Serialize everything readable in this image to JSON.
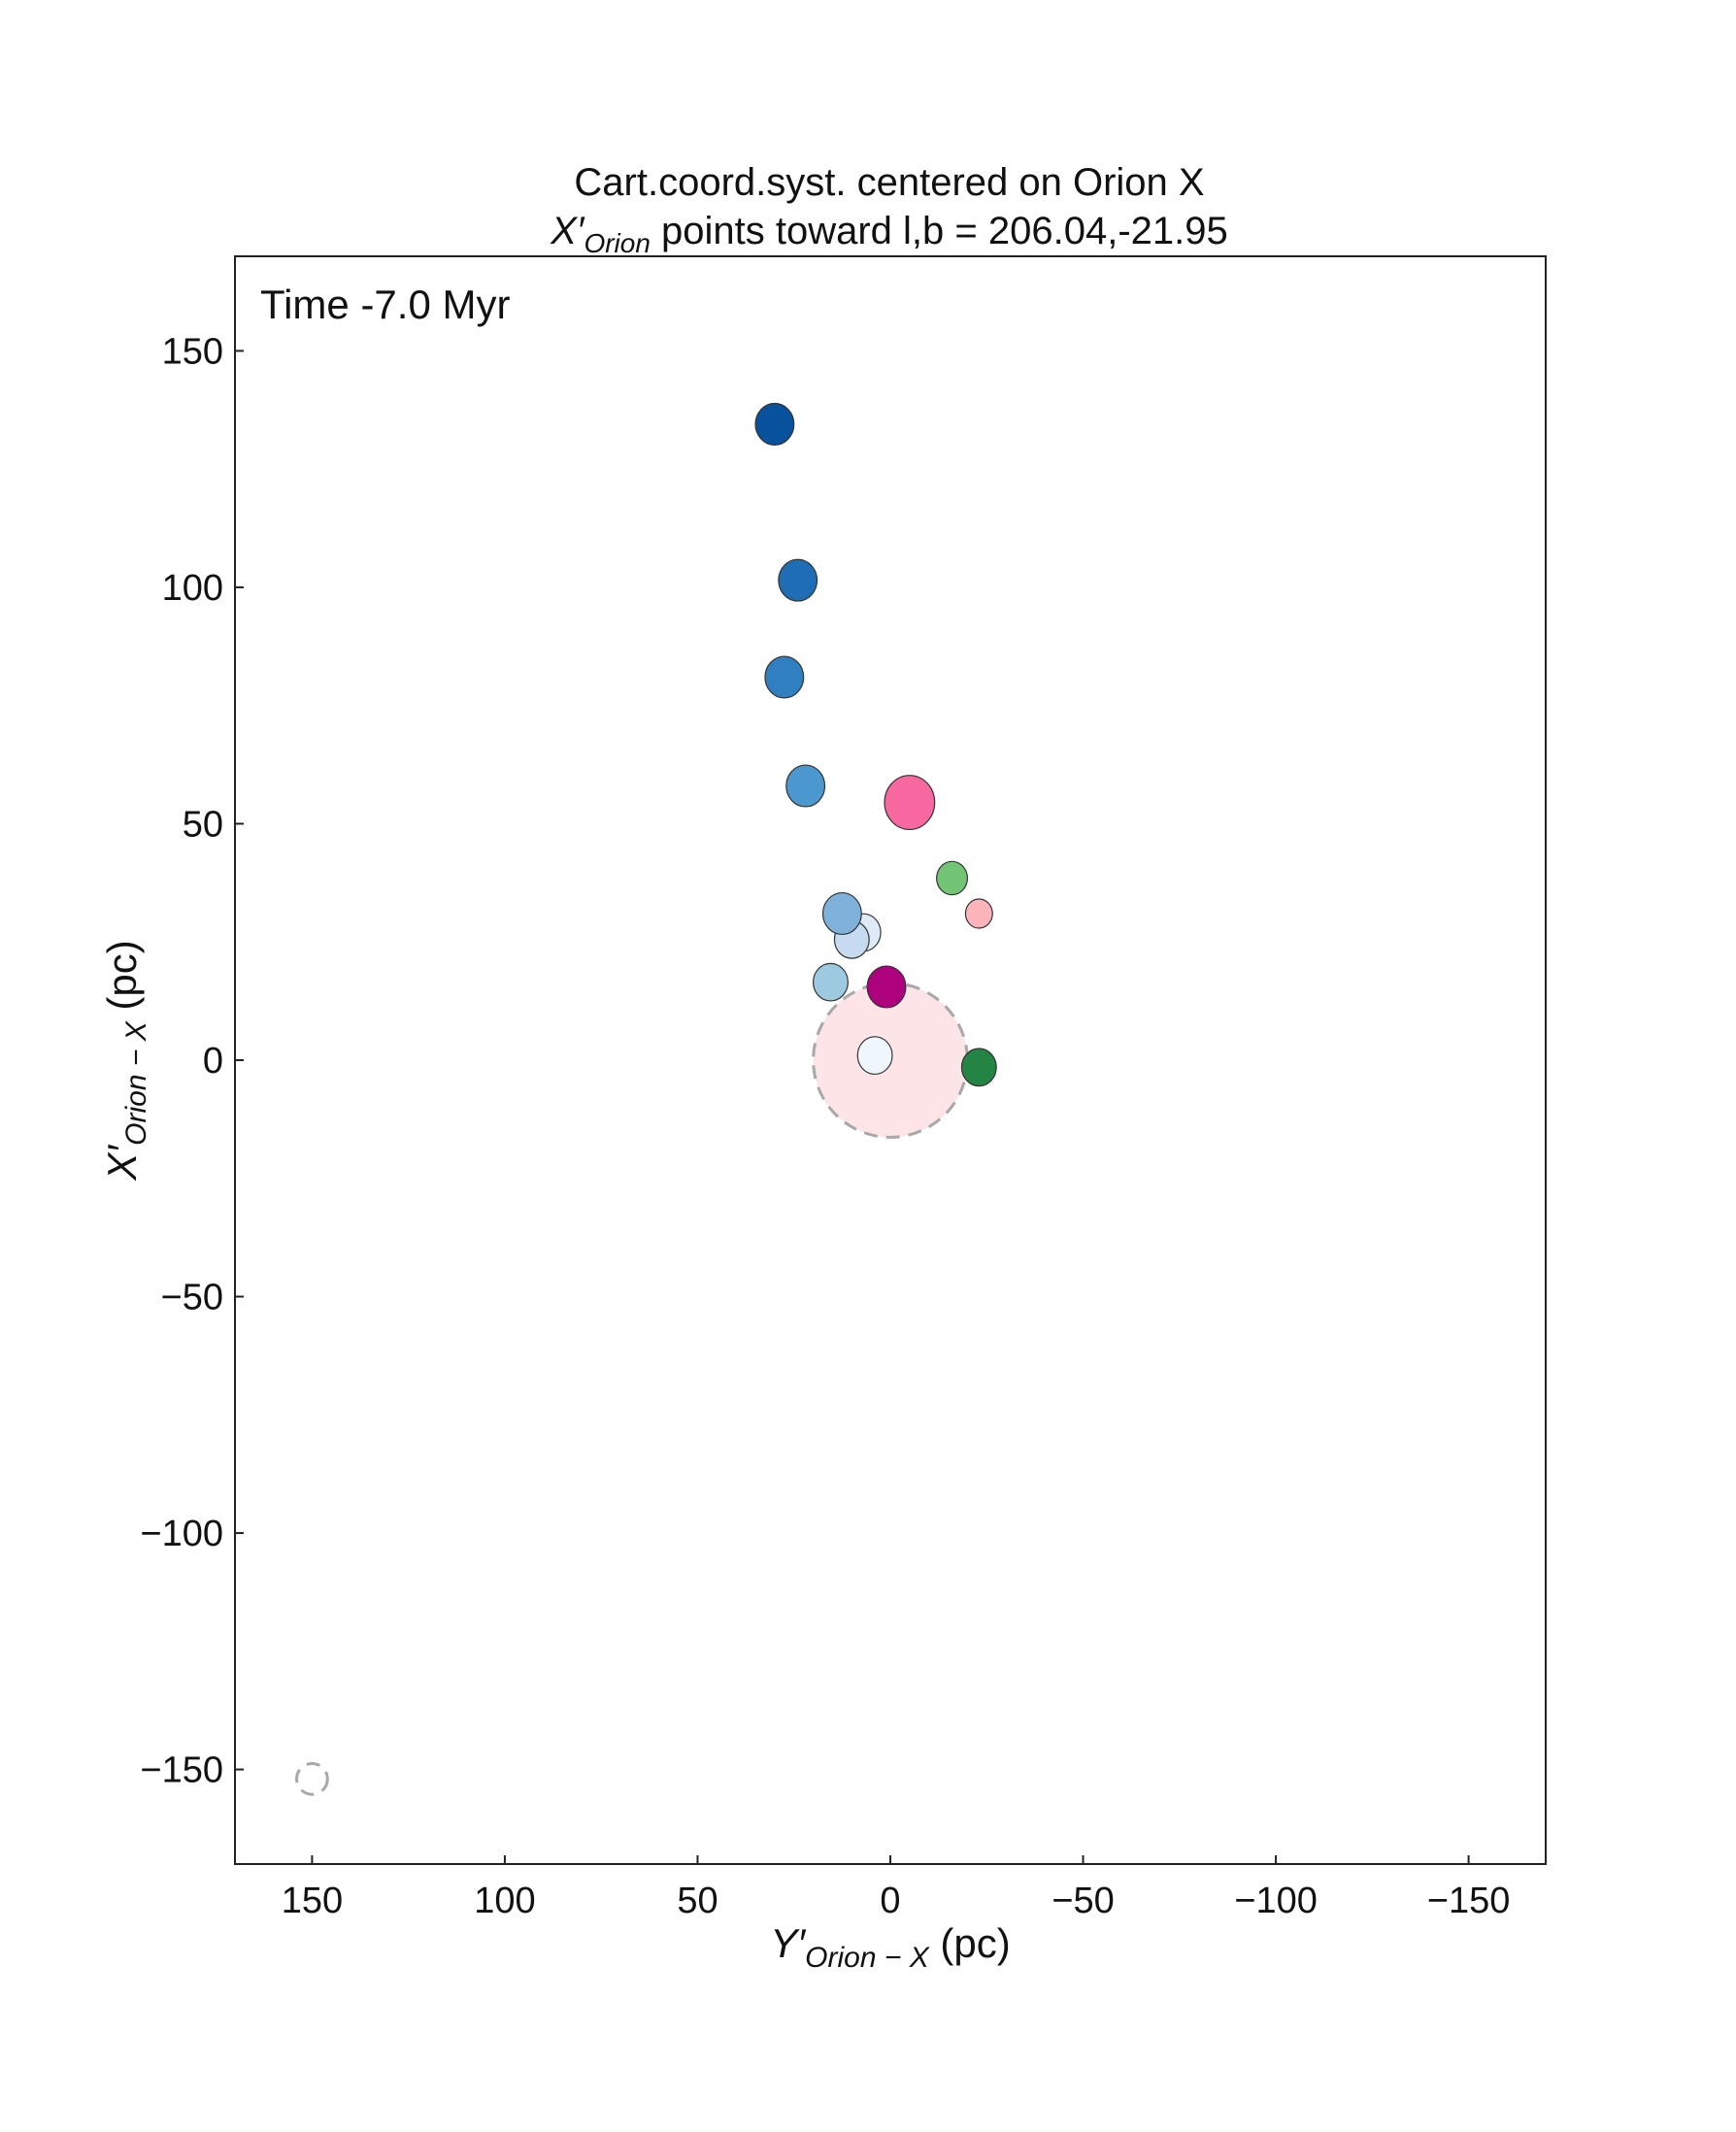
{
  "chart_data": {
    "type": "scatter",
    "title": "Cart.coord.syst. centered on Orion X",
    "subtitle": {
      "prefix": "X′",
      "subscript": "Orion",
      "rest": " points toward l,b = 206.04,-21.95"
    },
    "annotation": "Time  -7.0 Myr",
    "xlabel": {
      "prefix": "Y′",
      "subscript": "Orion − X",
      "rest": " (pc)"
    },
    "ylabel": {
      "prefix": "X′",
      "subscript": "Orion − X",
      "rest": " (pc)"
    },
    "xlim": [
      170,
      -170
    ],
    "ylim": [
      -170,
      170
    ],
    "x_inverted": true,
    "xticks": [
      150,
      100,
      50,
      0,
      -50,
      -100,
      -150
    ],
    "xtick_labels": [
      "150",
      "100",
      "50",
      "0",
      "−50",
      "−100",
      "−150"
    ],
    "yticks": [
      150,
      100,
      50,
      0,
      -50,
      -100,
      -150
    ],
    "ytick_labels": [
      "150",
      "100",
      "50",
      "0",
      "−50",
      "−100",
      "−150"
    ],
    "grid": false,
    "regions": [
      {
        "x": 0,
        "y": 0,
        "radius": 20,
        "fill": "#fde4e6",
        "stroke": "#a8a8a8",
        "dashed": true
      },
      {
        "x": 150,
        "y": -152,
        "radius": 4,
        "fill": "none",
        "stroke": "#a8a8a8",
        "dashed": true
      }
    ],
    "points": [
      {
        "x": 30,
        "y": 134.5,
        "radius": 5,
        "color": "#08519c"
      },
      {
        "x": 24,
        "y": 101.5,
        "radius": 5,
        "color": "#1f6db5"
      },
      {
        "x": 27.5,
        "y": 81,
        "radius": 5,
        "color": "#2f7fc1"
      },
      {
        "x": 22,
        "y": 58,
        "radius": 5,
        "color": "#4a98cf"
      },
      {
        "x": -5,
        "y": 54.5,
        "radius": 6.5,
        "color": "#f768a1"
      },
      {
        "x": -16,
        "y": 38.5,
        "radius": 4,
        "color": "#74c476"
      },
      {
        "x": -23,
        "y": 31,
        "radius": 3.5,
        "color": "#fbb4b9"
      },
      {
        "x": 7,
        "y": 27,
        "radius": 4.5,
        "color": "#deebf7"
      },
      {
        "x": 10,
        "y": 25.5,
        "radius": 4.5,
        "color": "#c6dbef"
      },
      {
        "x": 12.5,
        "y": 31,
        "radius": 5,
        "color": "#7fb2da"
      },
      {
        "x": 15.5,
        "y": 16.5,
        "radius": 4.5,
        "color": "#9ecae1"
      },
      {
        "x": 1,
        "y": 15.5,
        "radius": 5,
        "color": "#ae017e"
      },
      {
        "x": 4,
        "y": 1,
        "radius": 4.5,
        "color": "#eff6fc"
      },
      {
        "x": -23,
        "y": -1.5,
        "radius": 4.5,
        "color": "#238443"
      }
    ]
  }
}
